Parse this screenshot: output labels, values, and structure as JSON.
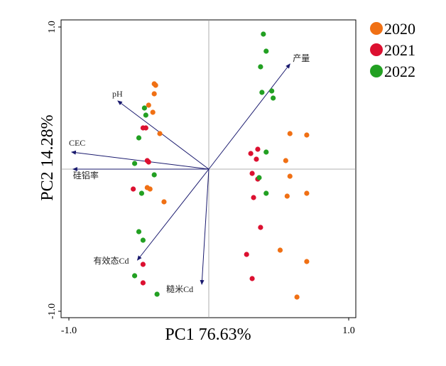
{
  "chart_data": {
    "type": "scatter",
    "subtype": "pca-biplot",
    "xlabel": "PC1 76.63%",
    "ylabel": "PC2 14.28%",
    "xlim": [
      -1.0,
      1.0
    ],
    "ylim": [
      -1.0,
      1.0
    ],
    "x_ticks": [
      "-1.0",
      "1.0"
    ],
    "y_ticks": [
      "1.0",
      "-1.0"
    ],
    "grid": false,
    "zero_lines": true,
    "legend_position": "outside-top-right",
    "series": [
      {
        "name": "2020",
        "color": "#f07014",
        "points": [
          [
            -0.39,
            0.6
          ],
          [
            -0.38,
            0.59
          ],
          [
            -0.39,
            0.53
          ],
          [
            -0.43,
            0.45
          ],
          [
            -0.4,
            0.4
          ],
          [
            -0.35,
            0.25
          ],
          [
            -0.44,
            -0.13
          ],
          [
            -0.42,
            -0.14
          ],
          [
            -0.32,
            -0.23
          ],
          [
            0.58,
            0.25
          ],
          [
            0.7,
            0.24
          ],
          [
            0.55,
            0.06
          ],
          [
            0.58,
            -0.05
          ],
          [
            0.56,
            -0.19
          ],
          [
            0.7,
            -0.17
          ],
          [
            0.51,
            -0.57
          ],
          [
            0.7,
            -0.65
          ],
          [
            0.63,
            -0.9
          ]
        ]
      },
      {
        "name": "2021",
        "color": "#dc1030",
        "points": [
          [
            -0.47,
            0.29
          ],
          [
            -0.45,
            0.29
          ],
          [
            -0.44,
            0.06
          ],
          [
            -0.43,
            0.05
          ],
          [
            -0.54,
            -0.14
          ],
          [
            0.3,
            0.11
          ],
          [
            0.35,
            0.14
          ],
          [
            0.34,
            0.07
          ],
          [
            0.31,
            -0.03
          ],
          [
            0.35,
            -0.07
          ],
          [
            0.32,
            -0.2
          ],
          [
            0.37,
            -0.41
          ],
          [
            0.27,
            -0.6
          ],
          [
            0.31,
            -0.77
          ],
          [
            -0.47,
            -0.67
          ],
          [
            -0.47,
            -0.8
          ]
        ]
      },
      {
        "name": "2022",
        "color": "#22a022",
        "points": [
          [
            0.39,
            0.95
          ],
          [
            0.41,
            0.83
          ],
          [
            0.37,
            0.72
          ],
          [
            0.38,
            0.54
          ],
          [
            0.45,
            0.55
          ],
          [
            0.46,
            0.5
          ],
          [
            0.41,
            0.12
          ],
          [
            0.36,
            -0.06
          ],
          [
            0.41,
            -0.17
          ],
          [
            -0.46,
            0.43
          ],
          [
            -0.45,
            0.38
          ],
          [
            -0.5,
            0.22
          ],
          [
            -0.53,
            0.04
          ],
          [
            -0.39,
            -0.04
          ],
          [
            -0.48,
            -0.17
          ],
          [
            -0.5,
            -0.44
          ],
          [
            -0.47,
            -0.5
          ],
          [
            -0.53,
            -0.75
          ],
          [
            -0.37,
            -0.88
          ]
        ]
      }
    ],
    "vectors": [
      {
        "label": "产量",
        "x": 0.58,
        "y": 0.74
      },
      {
        "label": "pH",
        "x": -0.65,
        "y": 0.48
      },
      {
        "label": "CEC",
        "x": -0.98,
        "y": 0.12
      },
      {
        "label": "硅铝率",
        "x": -0.97,
        "y": 0.0
      },
      {
        "label": "有效态Cd",
        "x": -0.51,
        "y": -0.64
      },
      {
        "label": "糙米Cd",
        "x": -0.05,
        "y": -0.81
      }
    ]
  }
}
